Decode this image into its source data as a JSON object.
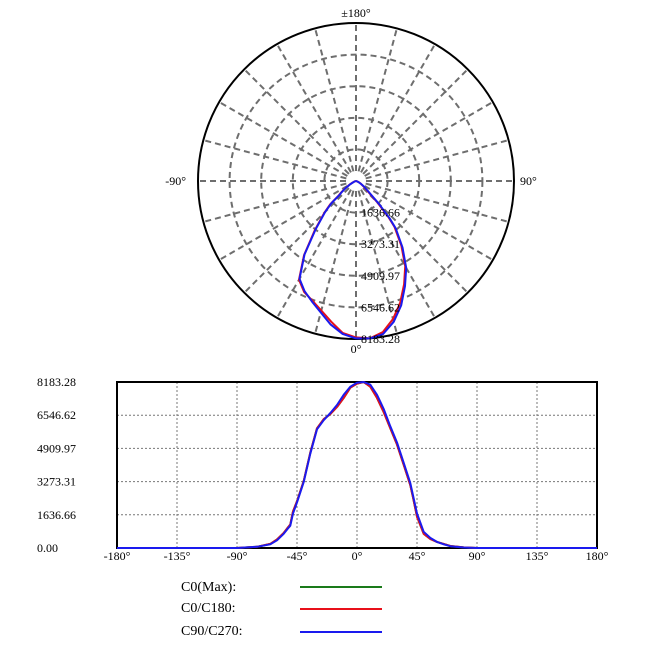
{
  "chart_data": [
    {
      "type": "polar",
      "angle_labels": [
        "±180°",
        "90°",
        "0°",
        "-90°"
      ],
      "radial_ticks": [
        1636.66,
        3273.31,
        4909.97,
        6546.62,
        8183.28
      ],
      "radial_tick_labels": [
        "1636.66",
        "3273.31",
        "4909.97",
        "6546.62",
        "8183.28"
      ],
      "rmax": 8183.28,
      "grid": true,
      "series": [
        {
          "name": "C0/C180",
          "color": "#e8101a",
          "points": [
            [
              -90,
              0
            ],
            [
              -75,
              60
            ],
            [
              -65,
              200
            ],
            [
              -60,
              420
            ],
            [
              -55,
              740
            ],
            [
              -52,
              1000
            ],
            [
              -50,
              1160
            ],
            [
              -48,
              1800
            ],
            [
              -45,
              2300
            ],
            [
              -40,
              3300
            ],
            [
              -35,
              4700
            ],
            [
              -30,
              5900
            ],
            [
              -25,
              6350
            ],
            [
              -20,
              6600
            ],
            [
              -15,
              6950
            ],
            [
              -10,
              7400
            ],
            [
              -5,
              7900
            ],
            [
              0,
              8100
            ],
            [
              5,
              8183
            ],
            [
              10,
              7950
            ],
            [
              15,
              7400
            ],
            [
              20,
              6700
            ],
            [
              25,
              5900
            ],
            [
              30,
              5100
            ],
            [
              35,
              4100
            ],
            [
              40,
              3100
            ],
            [
              42,
              2500
            ],
            [
              45,
              1550
            ],
            [
              50,
              700
            ],
            [
              55,
              450
            ],
            [
              60,
              300
            ],
            [
              65,
              200
            ],
            [
              70,
              100
            ],
            [
              80,
              30
            ],
            [
              90,
              0
            ]
          ]
        },
        {
          "name": "C90/C270",
          "color": "#1a1aee",
          "points": [
            [
              -90,
              0
            ],
            [
              -75,
              60
            ],
            [
              -65,
              180
            ],
            [
              -60,
              380
            ],
            [
              -55,
              700
            ],
            [
              -52,
              950
            ],
            [
              -50,
              1100
            ],
            [
              -48,
              1700
            ],
            [
              -45,
              2250
            ],
            [
              -40,
              3250
            ],
            [
              -35,
              4650
            ],
            [
              -30,
              5850
            ],
            [
              -25,
              6300
            ],
            [
              -20,
              6650
            ],
            [
              -15,
              7050
            ],
            [
              -10,
              7550
            ],
            [
              -5,
              7950
            ],
            [
              0,
              8150
            ],
            [
              5,
              8183
            ],
            [
              10,
              8050
            ],
            [
              15,
              7550
            ],
            [
              20,
              6850
            ],
            [
              25,
              6000
            ],
            [
              30,
              5200
            ],
            [
              35,
              4200
            ],
            [
              40,
              3200
            ],
            [
              42,
              2600
            ],
            [
              45,
              1700
            ],
            [
              50,
              800
            ],
            [
              55,
              500
            ],
            [
              60,
              300
            ],
            [
              65,
              180
            ],
            [
              70,
              90
            ],
            [
              80,
              25
            ],
            [
              90,
              0
            ]
          ]
        }
      ]
    },
    {
      "type": "line",
      "x_tick_labels": [
        "-180°",
        "-135°",
        "-90°",
        "-45°",
        "0°",
        "45°",
        "90°",
        "135°",
        "180°"
      ],
      "x_ticks": [
        -180,
        -135,
        -90,
        -45,
        0,
        45,
        90,
        135,
        180
      ],
      "xlim": [
        -180,
        180
      ],
      "y_tick_labels": [
        "0.00",
        "1636.66",
        "3273.31",
        "4909.97",
        "6546.62",
        "8183.28"
      ],
      "y_ticks": [
        0,
        1636.66,
        3273.31,
        4909.97,
        6546.62,
        8183.28
      ],
      "ylim": [
        0,
        8183.28
      ],
      "grid": true,
      "series": [
        {
          "name": "C0(Max)",
          "color": "#1a7a1a",
          "x": [
            -180,
            -90,
            -75,
            -65,
            -60,
            -55,
            -52,
            -50,
            -48,
            -45,
            -40,
            -35,
            -30,
            -25,
            -20,
            -15,
            -10,
            -5,
            0,
            5,
            10,
            15,
            20,
            25,
            30,
            35,
            40,
            42,
            45,
            50,
            55,
            60,
            65,
            70,
            80,
            90,
            180
          ],
          "y": [
            0,
            0,
            60,
            200,
            420,
            740,
            1000,
            1160,
            1800,
            2300,
            3300,
            4700,
            5900,
            6350,
            6600,
            6950,
            7400,
            7900,
            8100,
            8183,
            7950,
            7400,
            6700,
            5900,
            5100,
            4100,
            3100,
            2500,
            1550,
            700,
            450,
            300,
            200,
            100,
            30,
            0,
            0
          ]
        },
        {
          "name": "C0/C180",
          "color": "#e8101a",
          "x": [
            -180,
            -90,
            -75,
            -65,
            -60,
            -55,
            -52,
            -50,
            -48,
            -45,
            -40,
            -35,
            -30,
            -25,
            -20,
            -15,
            -10,
            -5,
            0,
            5,
            10,
            15,
            20,
            25,
            30,
            35,
            40,
            42,
            45,
            50,
            55,
            60,
            65,
            70,
            80,
            90,
            180
          ],
          "y": [
            0,
            0,
            60,
            200,
            420,
            740,
            1000,
            1160,
            1800,
            2300,
            3300,
            4700,
            5900,
            6350,
            6600,
            6950,
            7400,
            7900,
            8100,
            8183,
            7950,
            7400,
            6700,
            5900,
            5100,
            4100,
            3100,
            2500,
            1550,
            700,
            450,
            300,
            200,
            100,
            30,
            0,
            0
          ]
        },
        {
          "name": "C90/C270",
          "color": "#1a1aee",
          "x": [
            -180,
            -90,
            -75,
            -65,
            -60,
            -55,
            -52,
            -50,
            -48,
            -45,
            -40,
            -35,
            -30,
            -25,
            -20,
            -15,
            -10,
            -5,
            0,
            5,
            10,
            15,
            20,
            25,
            30,
            35,
            40,
            42,
            45,
            50,
            55,
            60,
            65,
            70,
            80,
            90,
            180
          ],
          "y": [
            0,
            0,
            60,
            180,
            380,
            700,
            950,
            1100,
            1700,
            2250,
            3250,
            4650,
            5850,
            6300,
            6650,
            7050,
            7550,
            7950,
            8150,
            8183,
            8050,
            7550,
            6850,
            6000,
            5200,
            4200,
            3200,
            2600,
            1700,
            800,
            500,
            300,
            180,
            90,
            25,
            0,
            0
          ]
        }
      ]
    }
  ],
  "legend": {
    "items": [
      {
        "label": "C0(Max):",
        "color": "#1a7a1a"
      },
      {
        "label": "C0/C180:",
        "color": "#e8101a"
      },
      {
        "label": "C90/C270:",
        "color": "#1a1aee"
      }
    ]
  }
}
